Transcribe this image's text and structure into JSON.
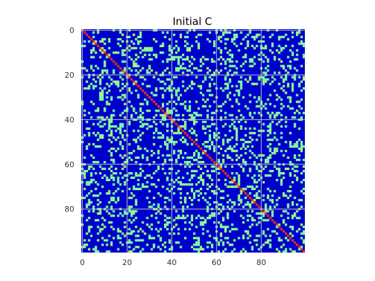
{
  "chart_data": {
    "type": "heatmap",
    "title": "Initial C",
    "xlabel": "",
    "ylabel": "",
    "rows": 100,
    "cols": 100,
    "xlim": [
      0,
      99
    ],
    "ylim": [
      0,
      99
    ],
    "x_ticks": [
      0,
      20,
      40,
      60,
      80
    ],
    "y_ticks": [
      0,
      20,
      40,
      60,
      80
    ],
    "grid": true,
    "colormap": "jet",
    "value_range": [
      0,
      1
    ],
    "structure": {
      "background_value": 0.0,
      "offdiagonal_value": 0.45,
      "offdiagonal_alt_value": 0.55,
      "diagonal_value": 1.0,
      "symmetric": true,
      "offdiagonal_density": 0.22
    },
    "colors": {
      "low": "#0000cc",
      "mid": "#7ffb9f",
      "mid_alt": "#a8f584",
      "high": "#e0301e",
      "grid": "#c8c8c8",
      "axis_text": "#333333"
    }
  }
}
